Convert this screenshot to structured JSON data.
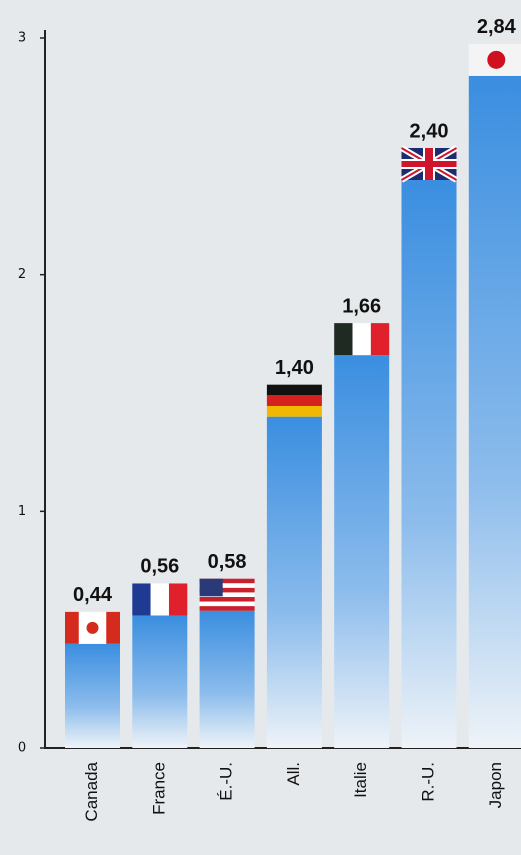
{
  "chart_data": {
    "type": "bar",
    "categories": [
      "Canada",
      "France",
      "É.-U.",
      "All.",
      "Italie",
      "R.-U.",
      "Japon"
    ],
    "values": [
      0.44,
      0.56,
      0.58,
      1.4,
      1.66,
      2.4,
      2.84
    ],
    "value_labels": [
      "0,44",
      "0,56",
      "0,58",
      "1,40",
      "1,66",
      "2,40",
      "2,84"
    ],
    "color": "#3a8ee0",
    "ylim": [
      0,
      3
    ],
    "yticks": [
      0,
      1,
      2,
      3
    ],
    "grid": false
  }
}
